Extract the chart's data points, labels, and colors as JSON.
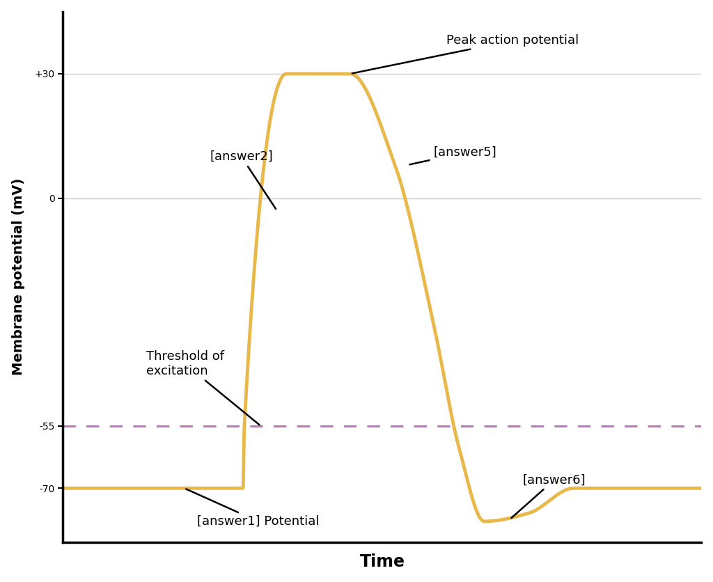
{
  "title": "",
  "xlabel": "Time",
  "ylabel": "Membrane potential (mV)",
  "background_color": "#ffffff",
  "line_color": "#E8B84B",
  "line_width": 3.5,
  "dashed_line_color": "#BB77BB",
  "dashed_line_y": -55,
  "yticks": [
    -70,
    -55,
    0,
    30
  ],
  "ytick_labels": [
    "-70",
    "-55",
    "0",
    "+30"
  ],
  "ylim": [
    -83,
    45
  ],
  "xlim": [
    0.0,
    10.0
  ],
  "grid_color": "#cccccc",
  "grid_yticks": [
    30,
    0
  ]
}
